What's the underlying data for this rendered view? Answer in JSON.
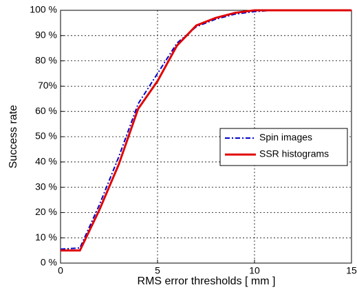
{
  "chart_data": {
    "type": "line",
    "x_label": "RMS error thresholds [ mm ]",
    "y_label": "Success rate",
    "xlim": [
      0,
      15
    ],
    "xticks": [
      0,
      5,
      10,
      15
    ],
    "ylim": [
      0,
      100
    ],
    "yticks": [
      {
        "value": 0,
        "label": "0 %"
      },
      {
        "value": 10,
        "label": "10 %"
      },
      {
        "value": 20,
        "label": "20 %"
      },
      {
        "value": 30,
        "label": "30 %"
      },
      {
        "value": 40,
        "label": "40 %"
      },
      {
        "value": 50,
        "label": "50 %"
      },
      {
        "value": 60,
        "label": "60 %"
      },
      {
        "value": 70,
        "label": "70%"
      },
      {
        "value": 80,
        "label": "80 %"
      },
      {
        "value": 90,
        "label": "90 %"
      },
      {
        "value": 100,
        "label": "100 %"
      }
    ],
    "grid": true,
    "legend": "east",
    "x": [
      0,
      1,
      2,
      3,
      4,
      5,
      6,
      7,
      8,
      9,
      10,
      11,
      15
    ],
    "series": [
      {
        "name": "Spin images",
        "color": "#0000cc",
        "dash": "dashdot",
        "values": [
          5.5,
          6,
          23,
          42,
          63,
          75,
          87,
          93.5,
          96.5,
          98.5,
          99.5,
          100,
          100
        ]
      },
      {
        "name": "SSR histograms",
        "color": "#e00000",
        "dash": "solid",
        "values": [
          5,
          5,
          21,
          39,
          61,
          72,
          86,
          94,
          97,
          99,
          100,
          100,
          100
        ]
      }
    ]
  }
}
